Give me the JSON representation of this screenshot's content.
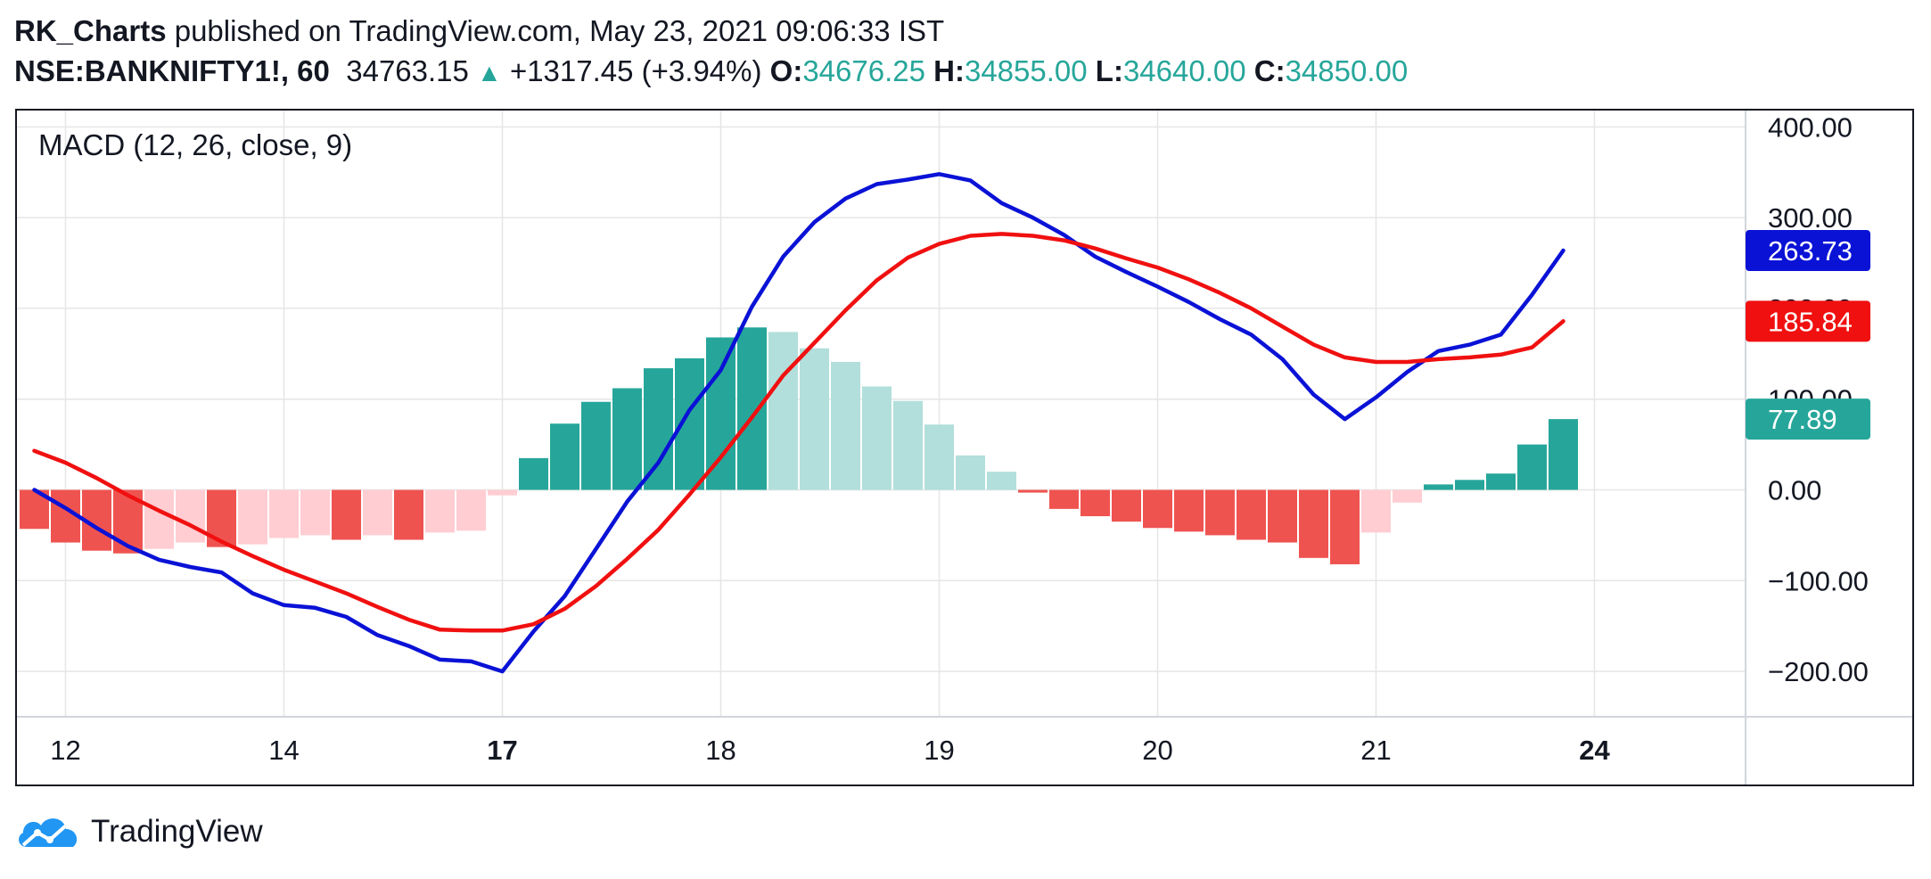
{
  "header": {
    "author": "RK_Charts",
    "published_text": "published on TradingView.com, May 23, 2021 09:06:33 IST",
    "symbol": "NSE:BANKNIFTY1!, 60",
    "last_price": "34763.15",
    "change": "+1317.45 (+3.94%)",
    "o_label": "O:",
    "o_value": "34676.25",
    "h_label": "H:",
    "h_value": "34855.00",
    "l_label": "L:",
    "l_value": "34640.00",
    "c_label": "C:",
    "c_value": "34850.00"
  },
  "footer": {
    "brand": "TradingView"
  },
  "colors": {
    "macd_line": "#0a12d6",
    "signal_line": "#f01010",
    "hist_up_strong": "#26a69a",
    "hist_up_weak": "#b2dfdb",
    "hist_down_strong": "#ef5350",
    "hist_down_weak": "#ffcdd2",
    "grid": "#e6e6e6"
  },
  "chart_data": {
    "type": "line",
    "title": "MACD (12, 26, close, 9)",
    "x_tick_labels": [
      "12",
      "14",
      "17",
      "18",
      "19",
      "20",
      "21",
      "24"
    ],
    "x_tick_bold": [
      false,
      false,
      true,
      false,
      false,
      false,
      false,
      true
    ],
    "x_tick_index": [
      1,
      8,
      15,
      22,
      29,
      36,
      43,
      50
    ],
    "y_ticks": [
      400,
      300,
      200,
      100,
      0,
      -100,
      -200
    ],
    "y_tick_labels": [
      "400.00",
      "300.00",
      "200.00",
      "100.00",
      "0.00",
      "−100.00",
      "−200.00"
    ],
    "ylim": [
      -250,
      418
    ],
    "grid": true,
    "histogram": [
      -43,
      -58,
      -67,
      -70,
      -65,
      -58,
      -63,
      -60,
      -53,
      -50,
      -55,
      -50,
      -55,
      -47,
      -45,
      -6,
      35,
      73,
      97,
      112,
      134,
      145,
      168,
      179,
      174,
      156,
      141,
      114,
      98,
      72,
      38,
      20,
      -3,
      -21,
      -29,
      -35,
      -42,
      -46,
      -50,
      -55,
      -58,
      -75,
      -82,
      -47,
      -14,
      6,
      11,
      18,
      50,
      78
    ],
    "series": [
      {
        "name": "MACD",
        "last_label": "263.73",
        "values": [
          0,
          -20,
          -42,
          -62,
          -77,
          -85,
          -91,
          -114,
          -127,
          -130,
          -140,
          -160,
          -172,
          -187,
          -189,
          -200,
          -156,
          -117,
          -65,
          -13,
          30,
          88,
          132,
          202,
          257,
          295,
          321,
          337,
          342,
          348,
          341,
          316,
          300,
          281,
          257,
          240,
          224,
          207,
          188,
          171,
          144,
          105,
          78,
          102,
          130,
          153,
          160,
          171,
          215,
          263.73
        ]
      },
      {
        "name": "Signal",
        "last_label": "185.84",
        "values": [
          43,
          30,
          13,
          -6,
          -23,
          -39,
          -57,
          -73,
          -88,
          -101,
          -114,
          -129,
          -143,
          -154,
          -155,
          -155,
          -148,
          -131,
          -106,
          -76,
          -44,
          -5,
          36,
          80,
          126,
          162,
          198,
          231,
          256,
          271,
          280,
          282,
          280,
          275,
          266,
          255,
          245,
          232,
          217,
          200,
          180,
          160,
          146,
          141,
          141,
          144,
          146,
          149,
          157,
          185.84
        ]
      },
      {
        "name": "Histogram",
        "last_label": "77.89"
      }
    ]
  }
}
